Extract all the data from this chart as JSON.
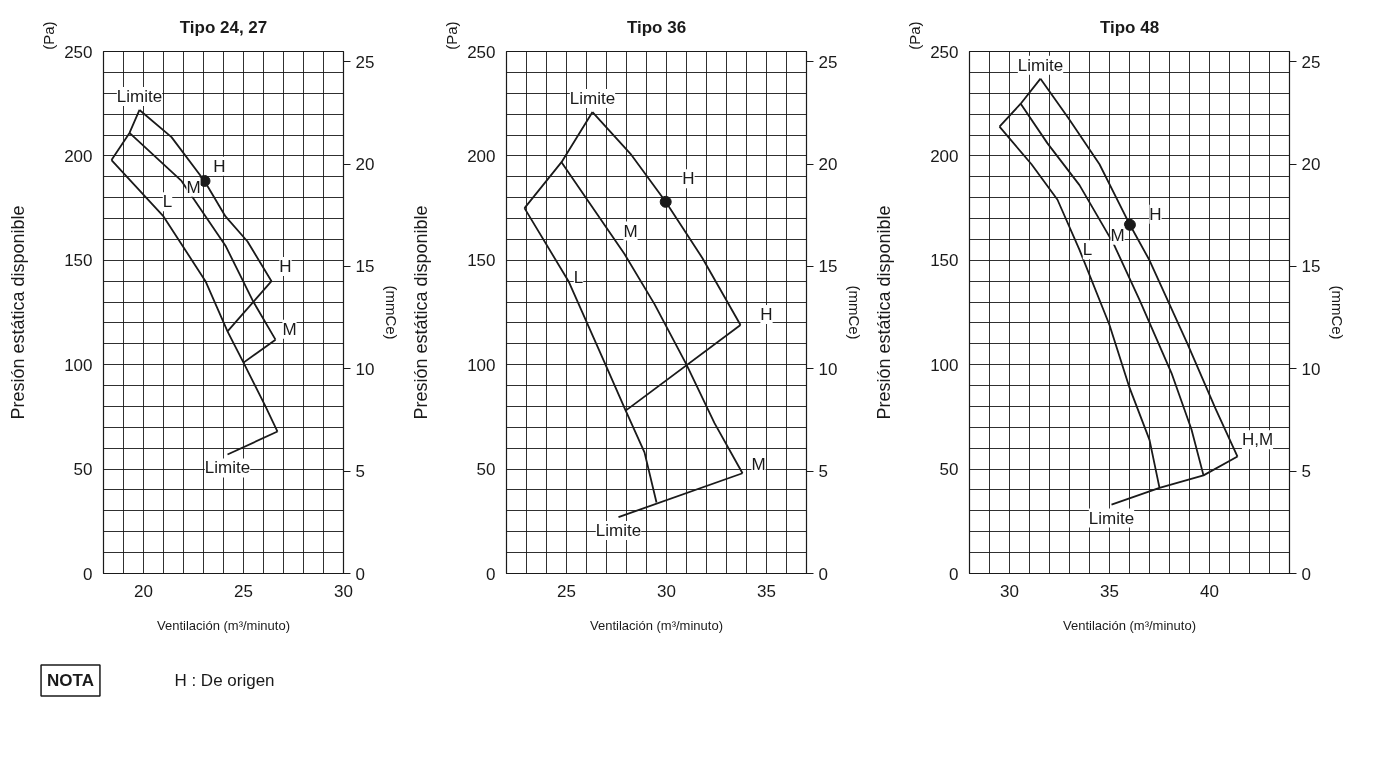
{
  "chart_data": [
    {
      "type": "line",
      "title": "Tipo 24, 27",
      "xlabel": "Ventilación (m³/minuto)",
      "ylabel": "Presión estática disponible",
      "y2label": "(mmCe)",
      "xlim": [
        18,
        30
      ],
      "xticks": [
        {
          "value": 19,
          "label": null
        },
        20,
        {
          "value": 21,
          "label": null
        },
        {
          "value": 22,
          "label": null
        },
        {
          "value": 23,
          "label": null
        },
        {
          "value": 24,
          "label": null
        },
        25,
        {
          "value": 26,
          "label": null
        },
        {
          "value": 27,
          "label": null
        },
        {
          "value": 28,
          "label": null
        },
        {
          "value": 29,
          "label": null
        },
        30
      ],
      "ylim": [
        0,
        250
      ],
      "yticks": [
        0,
        {
          "value": 10,
          "label": null
        },
        {
          "value": 20,
          "label": null
        },
        {
          "value": 30,
          "label": null
        },
        {
          "value": 40,
          "label": null
        },
        50,
        {
          "value": 60,
          "label": null
        },
        {
          "value": 70,
          "label": null
        },
        {
          "value": 80,
          "label": null
        },
        {
          "value": 90,
          "label": null
        },
        100,
        {
          "value": 110,
          "label": null
        },
        {
          "value": 120,
          "label": null
        },
        {
          "value": 130,
          "label": null
        },
        {
          "value": 140,
          "label": null
        },
        150,
        {
          "value": 160,
          "label": null
        },
        {
          "value": 170,
          "label": null
        },
        {
          "value": 180,
          "label": null
        },
        {
          "value": 190,
          "label": null
        },
        200,
        {
          "value": 210,
          "label": null
        },
        {
          "value": 220,
          "label": null
        },
        {
          "value": 230,
          "label": null
        },
        {
          "value": 240,
          "label": null
        },
        250
      ],
      "y2lim": [
        0,
        25.5
      ],
      "y2ticks": [
        0,
        5,
        10,
        15,
        20,
        25
      ],
      "grid": true,
      "series": [
        {
          "color": "#1a1a1a",
          "x": [
            19.8,
            21.4,
            23.05,
            24.1,
            25.2,
            26.4
          ],
          "values": [
            222,
            209,
            188,
            171,
            159,
            140
          ]
        },
        {
          "color": "#1a1a1a",
          "x": [
            19.3,
            21.9,
            24.1,
            25.5,
            26.6
          ],
          "values": [
            211,
            188,
            157,
            130,
            112
          ]
        },
        {
          "color": "#1a1a1a",
          "x": [
            18.4,
            21.0,
            23.1,
            24.2,
            25.0,
            26.1,
            26.7
          ],
          "values": [
            198,
            171,
            140,
            116,
            101,
            80,
            68
          ]
        },
        {
          "name": "Limite",
          "color": "#1a1a1a",
          "x": [
            19.8,
            19.3,
            18.4
          ],
          "values": [
            222,
            211,
            198
          ]
        },
        {
          "color": "#1a1a1a",
          "x": [
            26.4,
            24.2
          ],
          "values": [
            140,
            116
          ]
        },
        {
          "color": "#1a1a1a",
          "x": [
            26.6,
            25.0
          ],
          "values": [
            112,
            101
          ]
        },
        {
          "name": "Limite",
          "color": "#1a1a1a",
          "x": [
            24.2,
            26.7
          ],
          "values": [
            57,
            68
          ]
        },
        {
          "type": "scatter",
          "marker": "circle",
          "color": "#1a1a1a",
          "x": [
            23.05
          ],
          "values": [
            188
          ]
        }
      ],
      "annotations": [
        "(Pa)",
        {
          "text": "H",
          "x": 23.8,
          "y": 195
        },
        {
          "text": "M",
          "x": 22.5,
          "y": 185
        },
        {
          "text": "L",
          "x": 21.2,
          "y": 178
        },
        {
          "text": "H",
          "x": 27.1,
          "y": 147
        },
        {
          "text": "M",
          "x": 27.3,
          "y": 117
        }
      ]
    },
    {
      "type": "line",
      "title": "Tipo 36",
      "xlabel": "Ventilación (m³/minuto)",
      "ylabel": "Presión estática disponible",
      "y2label": "(mmCe)",
      "xlim": [
        22,
        37
      ],
      "xticks": [
        {
          "value": 23,
          "label": null
        },
        {
          "value": 24,
          "label": null
        },
        25,
        {
          "value": 26,
          "label": null
        },
        {
          "value": 27,
          "label": null
        },
        {
          "value": 28,
          "label": null
        },
        {
          "value": 29,
          "label": null
        },
        30,
        {
          "value": 31,
          "label": null
        },
        {
          "value": 32,
          "label": null
        },
        {
          "value": 33,
          "label": null
        },
        {
          "value": 34,
          "label": null
        },
        35,
        {
          "value": 36,
          "label": null
        }
      ],
      "ylim": [
        0,
        250
      ],
      "yticks": [
        0,
        {
          "value": 10,
          "label": null
        },
        {
          "value": 20,
          "label": null
        },
        {
          "value": 30,
          "label": null
        },
        {
          "value": 40,
          "label": null
        },
        50,
        {
          "value": 60,
          "label": null
        },
        {
          "value": 70,
          "label": null
        },
        {
          "value": 80,
          "label": null
        },
        {
          "value": 90,
          "label": null
        },
        100,
        {
          "value": 110,
          "label": null
        },
        {
          "value": 120,
          "label": null
        },
        {
          "value": 130,
          "label": null
        },
        {
          "value": 140,
          "label": null
        },
        150,
        {
          "value": 160,
          "label": null
        },
        {
          "value": 170,
          "label": null
        },
        {
          "value": 180,
          "label": null
        },
        {
          "value": 190,
          "label": null
        },
        200,
        {
          "value": 210,
          "label": null
        },
        {
          "value": 220,
          "label": null
        },
        {
          "value": 230,
          "label": null
        },
        {
          "value": 240,
          "label": null
        },
        250
      ],
      "y2lim": [
        0,
        25.5
      ],
      "y2ticks": [
        0,
        5,
        10,
        15,
        20,
        25
      ],
      "grid": true,
      "series": [
        {
          "color": "#1a1a1a",
          "x": [
            26.3,
            28.2,
            29.96,
            31.8,
            33.7
          ],
          "values": [
            221,
            201,
            178,
            151,
            119
          ]
        },
        {
          "color": "#1a1a1a",
          "x": [
            24.75,
            27.9,
            29.4,
            31.0,
            32.4,
            33.8
          ],
          "values": [
            197,
            153,
            129,
            100,
            72,
            48
          ]
        },
        {
          "color": "#1a1a1a",
          "x": [
            22.9,
            25.1,
            26.95,
            27.96,
            28.9,
            29.5
          ],
          "values": [
            175,
            140,
            100,
            78,
            58,
            34
          ]
        },
        {
          "name": "Limite",
          "color": "#1a1a1a",
          "x": [
            26.3,
            24.75,
            22.9
          ],
          "values": [
            221,
            197,
            175
          ]
        },
        {
          "color": "#1a1a1a",
          "x": [
            33.7,
            27.96
          ],
          "values": [
            119,
            78
          ]
        },
        {
          "name": "Limite",
          "color": "#1a1a1a",
          "x": [
            27.6,
            33.8
          ],
          "values": [
            27,
            48
          ]
        },
        {
          "type": "scatter",
          "marker": "circle",
          "color": "#1a1a1a",
          "x": [
            29.96
          ],
          "values": [
            178
          ]
        }
      ],
      "annotations": [
        "(Pa)",
        {
          "text": "H",
          "x": 31.1,
          "y": 189
        },
        {
          "text": "M",
          "x": 28.2,
          "y": 164
        },
        {
          "text": "L",
          "x": 25.6,
          "y": 142
        },
        {
          "text": "H",
          "x": 35.0,
          "y": 124
        },
        {
          "text": "M",
          "x": 34.6,
          "y": 52
        }
      ]
    },
    {
      "type": "line",
      "title": "Tipo 48",
      "xlabel": "Ventilación (m³/minuto)",
      "ylabel": "Presión estática disponible",
      "y2label": "(mmCe)",
      "xlim": [
        28,
        44
      ],
      "xticks": [
        {
          "value": 29,
          "label": null
        },
        30,
        {
          "value": 31,
          "label": null
        },
        {
          "value": 32,
          "label": null
        },
        {
          "value": 33,
          "label": null
        },
        {
          "value": 34,
          "label": null
        },
        35,
        {
          "value": 36,
          "label": null
        },
        {
          "value": 37,
          "label": null
        },
        {
          "value": 38,
          "label": null
        },
        {
          "value": 39,
          "label": null
        },
        40,
        {
          "value": 41,
          "label": null
        },
        {
          "value": 42,
          "label": null
        },
        {
          "value": 43,
          "label": null
        }
      ],
      "ylim": [
        0,
        250
      ],
      "yticks": [
        0,
        {
          "value": 10,
          "label": null
        },
        {
          "value": 20,
          "label": null
        },
        {
          "value": 30,
          "label": null
        },
        {
          "value": 40,
          "label": null
        },
        50,
        {
          "value": 60,
          "label": null
        },
        {
          "value": 70,
          "label": null
        },
        {
          "value": 80,
          "label": null
        },
        {
          "value": 90,
          "label": null
        },
        100,
        {
          "value": 110,
          "label": null
        },
        {
          "value": 120,
          "label": null
        },
        {
          "value": 130,
          "label": null
        },
        {
          "value": 140,
          "label": null
        },
        150,
        {
          "value": 160,
          "label": null
        },
        {
          "value": 170,
          "label": null
        },
        {
          "value": 180,
          "label": null
        },
        {
          "value": 190,
          "label": null
        },
        200,
        {
          "value": 210,
          "label": null
        },
        {
          "value": 220,
          "label": null
        },
        {
          "value": 230,
          "label": null
        },
        {
          "value": 240,
          "label": null
        },
        250
      ],
      "y2lim": [
        0,
        25.5
      ],
      "y2ticks": [
        0,
        5,
        10,
        15,
        20,
        25
      ],
      "grid": true,
      "series": [
        {
          "color": "#1a1a1a",
          "x": [
            31.55,
            32.95,
            34.5,
            36.02,
            37.0,
            38.9,
            40.3,
            41.4
          ],
          "values": [
            237,
            218,
            196,
            167,
            150,
            110,
            79,
            56
          ]
        },
        {
          "color": "#1a1a1a",
          "x": [
            30.56,
            31.9,
            33.5,
            35.2,
            36.5,
            38.1,
            39.1,
            39.7
          ],
          "values": [
            225,
            206,
            186,
            158,
            131,
            96,
            69,
            47
          ]
        },
        {
          "color": "#1a1a1a",
          "x": [
            29.5,
            31.1,
            32.4,
            33.5,
            35.0,
            36.0,
            37.0,
            37.5
          ],
          "values": [
            214,
            196,
            179,
            155,
            119,
            89,
            64,
            41
          ]
        },
        {
          "name": "Limite",
          "color": "#1a1a1a",
          "x": [
            31.55,
            30.56,
            29.5
          ],
          "values": [
            237,
            225,
            214
          ]
        },
        {
          "name": "Limite",
          "color": "#1a1a1a",
          "x": [
            35.1,
            37.5,
            39.7,
            41.4
          ],
          "values": [
            33,
            41,
            47,
            56
          ]
        },
        {
          "type": "scatter",
          "marker": "circle",
          "color": "#1a1a1a",
          "x": [
            36.02
          ],
          "values": [
            167
          ]
        }
      ],
      "annotations": [
        "(Pa)",
        {
          "text": "H",
          "x": 37.3,
          "y": 172
        },
        {
          "text": "M",
          "x": 35.4,
          "y": 162
        },
        {
          "text": "L",
          "x": 33.9,
          "y": 155
        },
        {
          "text": "H,M",
          "x": 42.4,
          "y": 64
        }
      ]
    },
    {
      "type": "other",
      "annotations": [
        "NOTA",
        "H : De origen"
      ]
    }
  ]
}
